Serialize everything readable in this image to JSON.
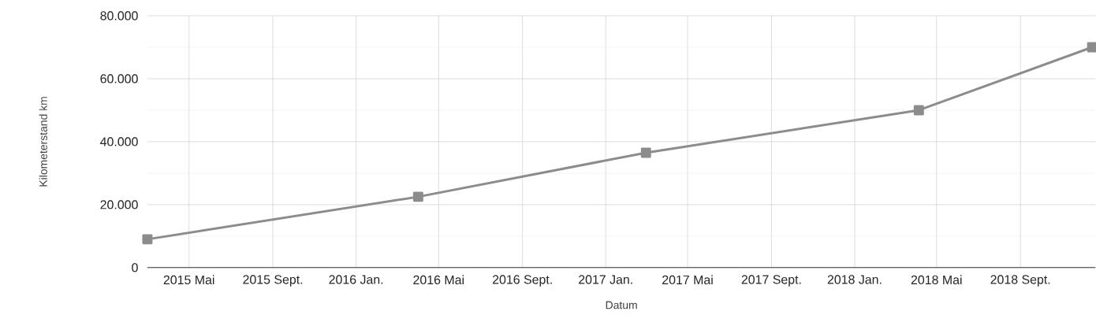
{
  "chart_data": {
    "type": "line",
    "xlabel": "Datum",
    "ylabel": "Kilometerstand km",
    "x": [
      "2015-03-01",
      "2016-04-01",
      "2017-03-01",
      "2018-04-05",
      "2018-12-15"
    ],
    "values": [
      9000,
      22500,
      36500,
      50000,
      70000
    ],
    "color": "#8c8c8c",
    "marker": "square",
    "line_style": "solid",
    "grid": true,
    "xlim": [
      "2015-03-01",
      "2018-12-20"
    ],
    "xticks": [
      {
        "value": "2015-05-01",
        "label": "2015 Mai"
      },
      {
        "value": "2015-09-01",
        "label": "2015 Sept."
      },
      {
        "value": "2016-01-01",
        "label": "2016 Jan."
      },
      {
        "value": "2016-05-01",
        "label": "2016 Mai"
      },
      {
        "value": "2016-09-01",
        "label": "2016 Sept."
      },
      {
        "value": "2017-01-01",
        "label": "2017 Jan."
      },
      {
        "value": "2017-05-01",
        "label": "2017 Mai"
      },
      {
        "value": "2017-09-01",
        "label": "2017 Sept."
      },
      {
        "value": "2018-01-01",
        "label": "2018 Jan."
      },
      {
        "value": "2018-05-01",
        "label": "2018 Mai"
      },
      {
        "value": "2018-09-01",
        "label": "2018 Sept."
      }
    ],
    "ylim": [
      0,
      80000
    ],
    "yticks": [
      0,
      {
        "value": 20000,
        "label": "20.000"
      },
      {
        "value": 40000,
        "label": "40.000"
      },
      {
        "value": 60000,
        "label": "60.000"
      },
      {
        "value": 80000,
        "label": "80.000"
      }
    ]
  }
}
